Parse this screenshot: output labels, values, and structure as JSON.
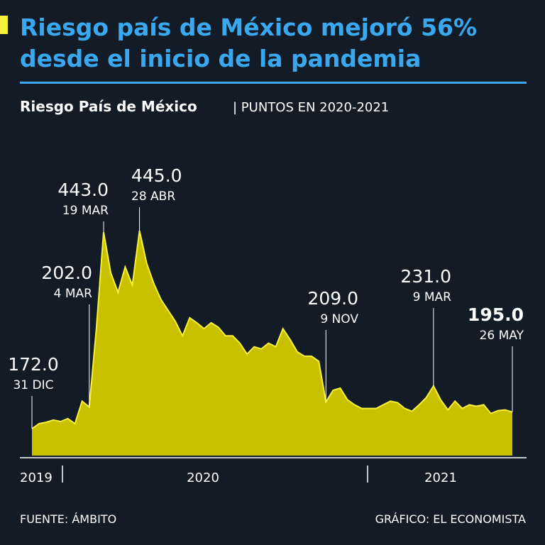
{
  "chart_data": {
    "type": "area",
    "title": [
      "Riesgo país de México mejoró 56%",
      "desde el inicio de la pandemia"
    ],
    "subtitle": "Riesgo País de México",
    "subtitle_note": "| PUNTOS EN 2020-2021",
    "x_labels": [
      "2019",
      "2020",
      "2021"
    ],
    "values": [
      172,
      179,
      181,
      184,
      182,
      186,
      179,
      210,
      202,
      311,
      443,
      387,
      360,
      395,
      370,
      445,
      400,
      372,
      350,
      335,
      320,
      300,
      325,
      318,
      310,
      318,
      312,
      300,
      300,
      290,
      275,
      285,
      282,
      290,
      285,
      310,
      295,
      278,
      272,
      272,
      265,
      209,
      225,
      228,
      212,
      205,
      200,
      200,
      200,
      205,
      210,
      208,
      200,
      196,
      205,
      215,
      231,
      212,
      198,
      210,
      200,
      205,
      203,
      205,
      193,
      197,
      198,
      195
    ],
    "color": "#c9c100",
    "line_color": "#f6f03c",
    "ylim": [
      135,
      450
    ],
    "annotations": [
      {
        "value": 172,
        "label": "172.0",
        "date": "31 DIC"
      },
      {
        "value": 202,
        "label": "202.0",
        "date": "4 MAR"
      },
      {
        "value": 443,
        "label": "443.0",
        "date": "19 MAR"
      },
      {
        "value": 445,
        "label": "445.0",
        "date": "28 ABR"
      },
      {
        "value": 209,
        "label": "209.0",
        "date": "9 NOV"
      },
      {
        "value": 231,
        "label": "231.0",
        "date": "9 MAR"
      },
      {
        "value": 195,
        "label": "195.0",
        "date": "26 MAY"
      }
    ],
    "source": "FUENTE: ÁMBITO",
    "credit": "GRÁFICO: EL ECONOMISTA"
  }
}
